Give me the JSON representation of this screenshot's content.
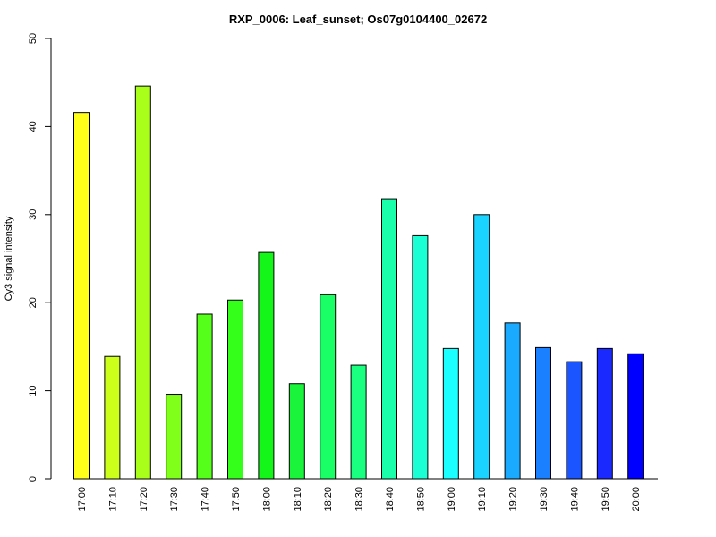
{
  "chart_data": {
    "type": "bar",
    "title": "RXP_0006: Leaf_sunset; Os07g0104400_02672",
    "xlabel": "",
    "ylabel": "Cy3 signal intensity",
    "ylim": [
      0,
      50
    ],
    "yticks": [
      0,
      10,
      20,
      30,
      40,
      50
    ],
    "categories": [
      "17:00",
      "17:10",
      "17:20",
      "17:30",
      "17:40",
      "17:50",
      "18:00",
      "18:10",
      "18:20",
      "18:30",
      "18:40",
      "18:50",
      "19:00",
      "19:10",
      "19:20",
      "19:30",
      "19:40",
      "19:50",
      "20:00"
    ],
    "values": [
      41.6,
      13.9,
      44.6,
      9.6,
      18.7,
      20.3,
      25.7,
      10.8,
      20.9,
      12.9,
      31.8,
      27.6,
      14.8,
      30.0,
      17.7,
      14.9,
      13.3,
      14.8,
      14.2
    ],
    "colors": [
      "#ffff1a",
      "#ccff1a",
      "#aaff1a",
      "#80ff1a",
      "#55ff1a",
      "#33ff1a",
      "#14f51a",
      "#1af53c",
      "#1aff66",
      "#1aff80",
      "#1affaa",
      "#1affd4",
      "#1affff",
      "#1ad4ff",
      "#1aaaff",
      "#1a80ff",
      "#1a55ff",
      "#1a2aff",
      "#0000ff"
    ],
    "grid": false,
    "legend": "none"
  }
}
